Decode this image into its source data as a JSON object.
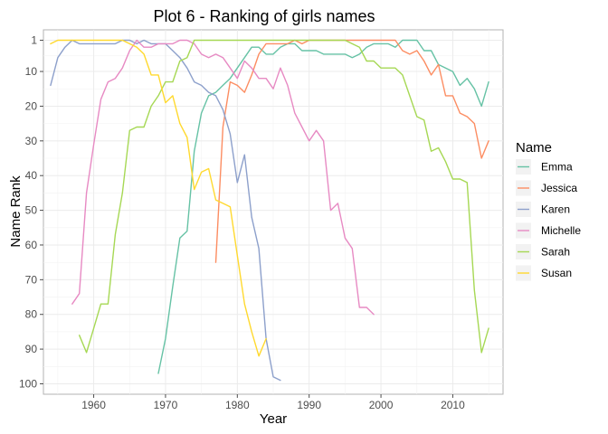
{
  "chart_data": {
    "type": "line",
    "title": "Plot 6 - Ranking of girls names",
    "xlabel": "Year",
    "ylabel": "Name Rank",
    "xlim": [
      1953,
      2017
    ],
    "ylim": [
      103,
      -2
    ],
    "y_reversed": true,
    "x_ticks": [
      1960,
      1970,
      1980,
      1990,
      2000,
      2010
    ],
    "y_ticks": [
      1,
      10,
      20,
      30,
      40,
      50,
      60,
      70,
      80,
      90,
      100
    ],
    "grid": true,
    "legend": {
      "title": "Name",
      "position": "right"
    },
    "series": [
      {
        "name": "Emma",
        "color": "#66C2A5",
        "x": [
          1969,
          1970,
          1971,
          1972,
          1973,
          1974,
          1975,
          1976,
          1977,
          1978,
          1979,
          1980,
          1981,
          1982,
          1983,
          1984,
          1985,
          1986,
          1987,
          1988,
          1989,
          1990,
          1991,
          1992,
          1993,
          1994,
          1995,
          1996,
          1997,
          1998,
          1999,
          2000,
          2001,
          2002,
          2003,
          2004,
          2005,
          2006,
          2007,
          2008,
          2009,
          2010,
          2011,
          2012,
          2013,
          2014,
          2015
        ],
        "values": [
          97,
          87,
          72,
          58,
          56,
          33,
          22,
          17,
          16,
          14,
          12,
          9,
          6,
          3,
          3,
          5,
          5,
          3,
          2,
          2,
          4,
          4,
          4,
          5,
          5,
          5,
          5,
          6,
          5,
          3,
          2,
          2,
          2,
          3,
          1,
          1,
          1,
          4,
          4,
          8,
          9,
          10,
          14,
          12,
          15,
          20,
          13
        ]
      },
      {
        "name": "Jessica",
        "color": "#FC8D62",
        "x": [
          1977,
          1978,
          1979,
          1980,
          1981,
          1982,
          1983,
          1984,
          1985,
          1986,
          1987,
          1988,
          1989,
          1990,
          1991,
          1992,
          1993,
          1994,
          1995,
          1996,
          1997,
          1998,
          1999,
          2000,
          2001,
          2002,
          2003,
          2004,
          2005,
          2006,
          2007,
          2008,
          2009,
          2010,
          2011,
          2012,
          2013,
          2014,
          2015
        ],
        "values": [
          65,
          26,
          13,
          14,
          16,
          11,
          5,
          2,
          2,
          2,
          2,
          1,
          2,
          1,
          1,
          1,
          1,
          1,
          1,
          1,
          1,
          1,
          1,
          1,
          1,
          1,
          4,
          5,
          4,
          7,
          11,
          8,
          17,
          17,
          22,
          23,
          25,
          35,
          30
        ]
      },
      {
        "name": "Karen",
        "color": "#8DA0CB",
        "x": [
          1954,
          1955,
          1956,
          1957,
          1958,
          1959,
          1960,
          1961,
          1962,
          1963,
          1964,
          1965,
          1966,
          1967,
          1968,
          1969,
          1970,
          1971,
          1972,
          1973,
          1974,
          1975,
          1976,
          1977,
          1978,
          1979,
          1980,
          1981,
          1982,
          1983,
          1984,
          1985,
          1986
        ],
        "values": [
          14,
          6,
          3,
          1,
          2,
          2,
          2,
          2,
          2,
          2,
          1,
          1,
          2,
          1,
          2,
          2,
          2,
          4,
          6,
          9,
          13,
          14,
          16,
          17,
          21,
          28,
          42,
          34,
          52,
          61,
          87,
          98,
          99
        ]
      },
      {
        "name": "Michelle",
        "color": "#E78AC3",
        "x": [
          1957,
          1958,
          1959,
          1960,
          1961,
          1962,
          1963,
          1964,
          1965,
          1966,
          1967,
          1968,
          1969,
          1970,
          1971,
          1972,
          1973,
          1974,
          1975,
          1976,
          1977,
          1978,
          1979,
          1980,
          1981,
          1982,
          1983,
          1984,
          1985,
          1986,
          1987,
          1988,
          1989,
          1990,
          1991,
          1992,
          1993,
          1994,
          1995,
          1996,
          1997,
          1998,
          1999
        ],
        "values": [
          77,
          74,
          45,
          31,
          18,
          13,
          12,
          9,
          4,
          1,
          3,
          3,
          2,
          2,
          2,
          1,
          1,
          2,
          5,
          6,
          5,
          6,
          9,
          12,
          7,
          9,
          12,
          12,
          15,
          9,
          14,
          22,
          26,
          30,
          27,
          30,
          50,
          48,
          58,
          61,
          78,
          78,
          80
        ]
      },
      {
        "name": "Sarah",
        "color": "#A6D854",
        "x": [
          1958,
          1959,
          1960,
          1961,
          1962,
          1963,
          1964,
          1965,
          1966,
          1967,
          1968,
          1969,
          1970,
          1971,
          1972,
          1973,
          1974,
          1975,
          1976,
          1977,
          1978,
          1979,
          1980,
          1981,
          1982,
          1983,
          1984,
          1985,
          1986,
          1987,
          1988,
          1989,
          1990,
          1991,
          1992,
          1993,
          1994,
          1995,
          1996,
          1997,
          1998,
          1999,
          2000,
          2001,
          2002,
          2003,
          2004,
          2005,
          2006,
          2007,
          2008,
          2009,
          2010,
          2011,
          2012,
          2013,
          2014,
          2015
        ],
        "values": [
          86,
          91,
          84,
          77,
          77,
          57,
          45,
          27,
          26,
          26,
          20,
          17,
          13,
          13,
          7,
          6,
          1,
          1,
          1,
          1,
          1,
          1,
          1,
          1,
          1,
          1,
          1,
          1,
          1,
          1,
          1,
          1,
          1,
          1,
          1,
          1,
          1,
          1,
          2,
          3,
          7,
          7,
          9,
          9,
          9,
          11,
          17,
          23,
          24,
          33,
          32,
          36,
          41,
          41,
          42,
          73,
          91,
          84
        ]
      },
      {
        "name": "Susan",
        "color": "#FFD92F",
        "x": [
          1954,
          1955,
          1956,
          1957,
          1958,
          1959,
          1960,
          1961,
          1962,
          1963,
          1964,
          1965,
          1966,
          1967,
          1968,
          1969,
          1970,
          1971,
          1972,
          1973,
          1974,
          1975,
          1976,
          1977,
          1978,
          1979,
          1980,
          1981,
          1982,
          1983,
          1984
        ],
        "values": [
          2,
          1,
          1,
          1,
          1,
          1,
          1,
          1,
          1,
          1,
          1,
          2,
          3,
          5,
          11,
          11,
          19,
          17,
          25,
          29,
          44,
          39,
          38,
          47,
          48,
          49,
          63,
          77,
          85,
          92,
          87
        ]
      }
    ]
  }
}
